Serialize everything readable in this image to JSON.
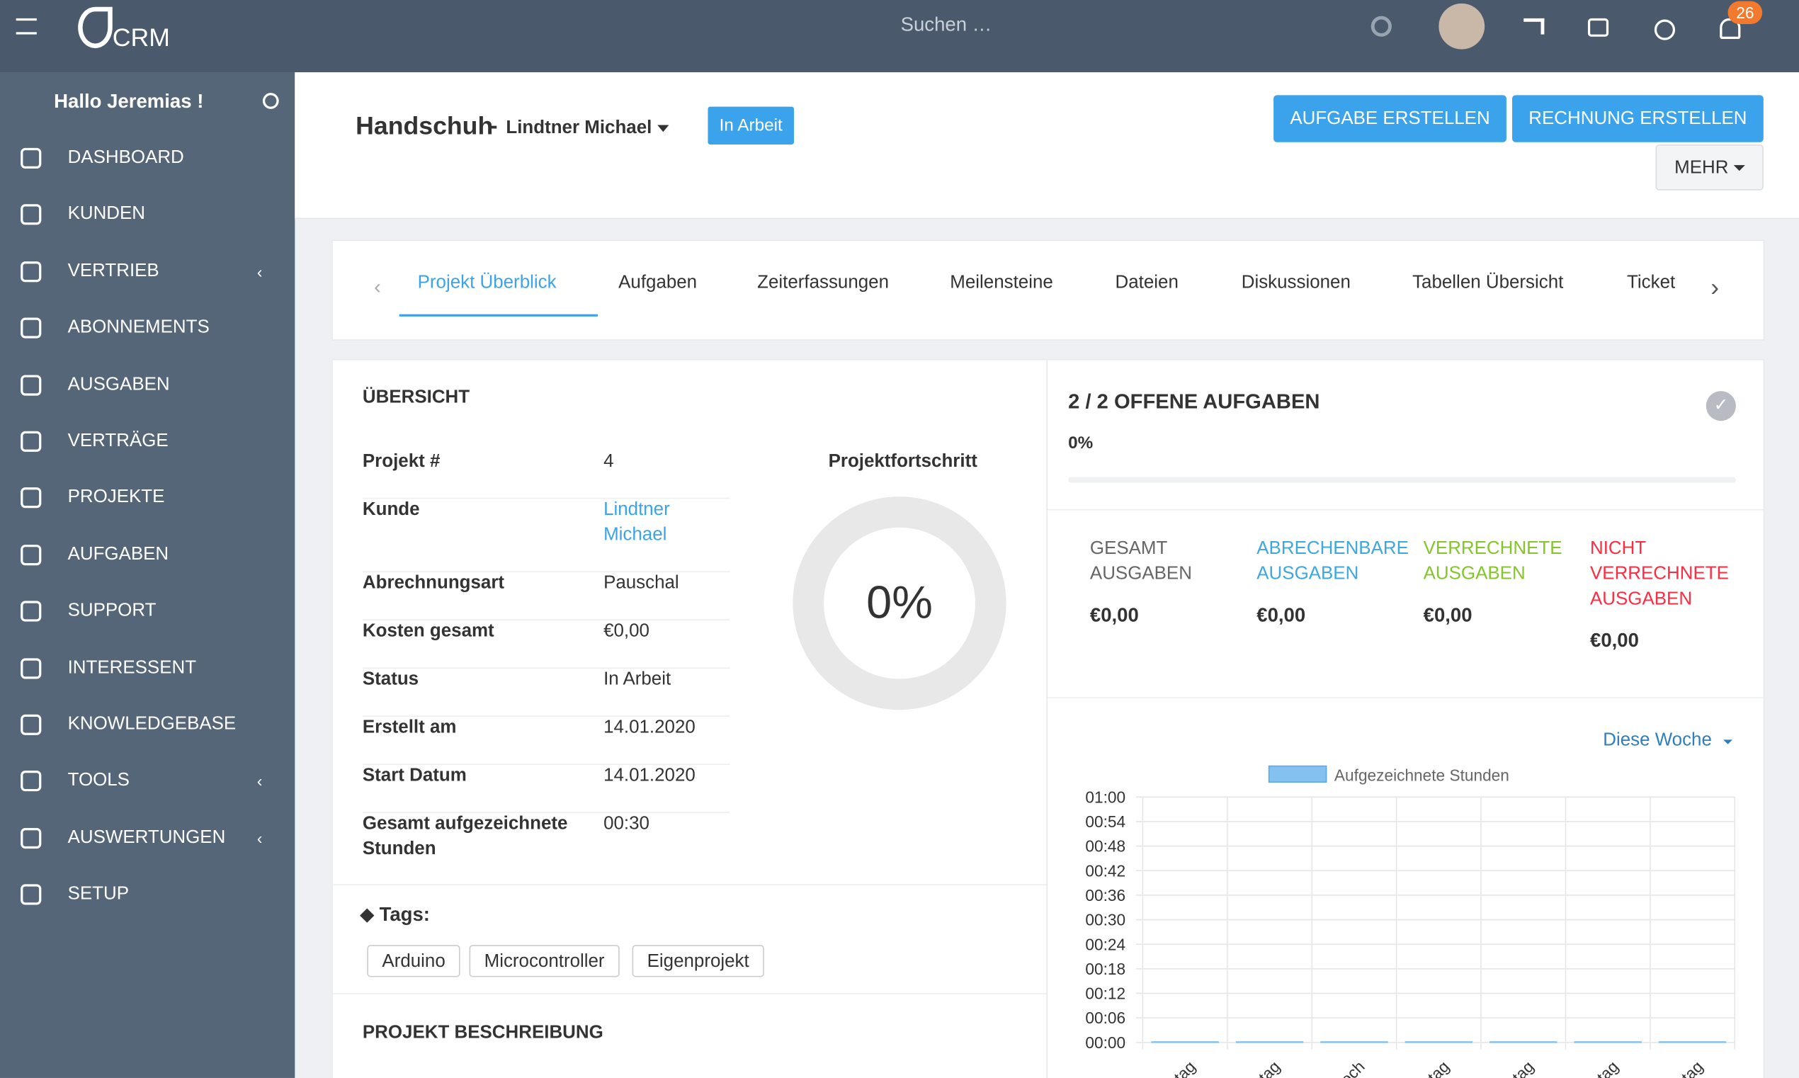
{
  "topbar": {
    "logo": "CRM",
    "search": "Suchen …",
    "notifications": "26"
  },
  "sidebar": {
    "greeting": "Hallo Jeremias !",
    "menu": [
      "DASHBOARD",
      "KUNDEN",
      "VERTRIEB",
      "ABONNEMENTS",
      "AUSGABEN",
      "VERTRÄGE",
      "PROJEKTE",
      "AUFGABEN",
      "SUPPORT",
      "INTERESSENT",
      "KNOWLEDGEBASE",
      "TOOLS",
      "AUSWERTUNGEN",
      "SETUP"
    ]
  },
  "header": {
    "project": "Handschuh",
    "separator": "-",
    "client": "Lindtner Michael",
    "status": "In Arbeit",
    "buttons": [
      "AUFGABE ERSTELLEN",
      "RECHNUNG ERSTELLEN",
      "MEHR"
    ]
  },
  "tabs": [
    "Projekt Überblick",
    "Aufgaben",
    "Zeiterfassungen",
    "Meilensteine",
    "Dateien",
    "Diskussionen",
    "Tabellen Übersicht",
    "Ticket"
  ],
  "overview": {
    "title": "ÜBERSICHT",
    "rows": [
      [
        "Projekt #",
        "4"
      ],
      [
        "Kunde",
        "Lindtner Michael"
      ],
      [
        "Abrechnungsart",
        "Pauschal"
      ],
      [
        "Kosten gesamt",
        "€0,00"
      ],
      [
        "Status",
        "In Arbeit"
      ],
      [
        "Erstellt am",
        "14.01.2020"
      ],
      [
        "Start Datum",
        "14.01.2020"
      ],
      [
        "Gesamt aufgezeichnete Stunden",
        "00:30"
      ]
    ],
    "progress_title": "Projektfortschritt",
    "progress": "0%"
  },
  "tags": {
    "title": "Tags:",
    "items": [
      "Arduino",
      "Microcontroller",
      "Eigenprojekt"
    ]
  },
  "description_title": "PROJEKT BESCHREIBUNG",
  "tasks": {
    "title": "2 / 2 OFFENE AUFGABEN",
    "percent": "0%"
  },
  "expenses": [
    {
      "label": "GESAMT AUSGABEN",
      "value": "€0,00",
      "color": "#666666"
    },
    {
      "label": "ABRECHENBARE AUSGABEN",
      "value": "€0,00",
      "color": "#3ba8e0"
    },
    {
      "label": "VERRECHNETE AUSGABEN",
      "value": "€0,00",
      "color": "#84c529"
    },
    {
      "label": "NICHT VERRECHNETE AUSGABEN",
      "value": "€0,00",
      "color": "#fc2d42"
    }
  ],
  "chart_data": {
    "type": "bar",
    "filter": "Diese Woche",
    "categories": [
      "tag",
      "tag",
      "och",
      "tag",
      "tag",
      "tag",
      "tag"
    ],
    "series": [
      {
        "name": "Aufgezeichnete Stunden",
        "color": "#84c1f0",
        "values": [
          0,
          0,
          0,
          0,
          0,
          0,
          0
        ]
      }
    ],
    "ylim": [
      0,
      60
    ],
    "yticks": [
      {
        "value": 0,
        "label": "00:00"
      },
      {
        "value": 6,
        "label": "00:06"
      },
      {
        "value": 12,
        "label": "00:12"
      },
      {
        "value": 18,
        "label": "00:18"
      },
      {
        "value": 24,
        "label": "00:24"
      },
      {
        "value": 30,
        "label": "00:30"
      },
      {
        "value": 36,
        "label": "00:36"
      },
      {
        "value": 42,
        "label": "00:42"
      },
      {
        "value": 48,
        "label": "00:48"
      },
      {
        "value": 54,
        "label": "00:54"
      },
      {
        "value": 60,
        "label": "01:00"
      }
    ],
    "grid": true
  }
}
